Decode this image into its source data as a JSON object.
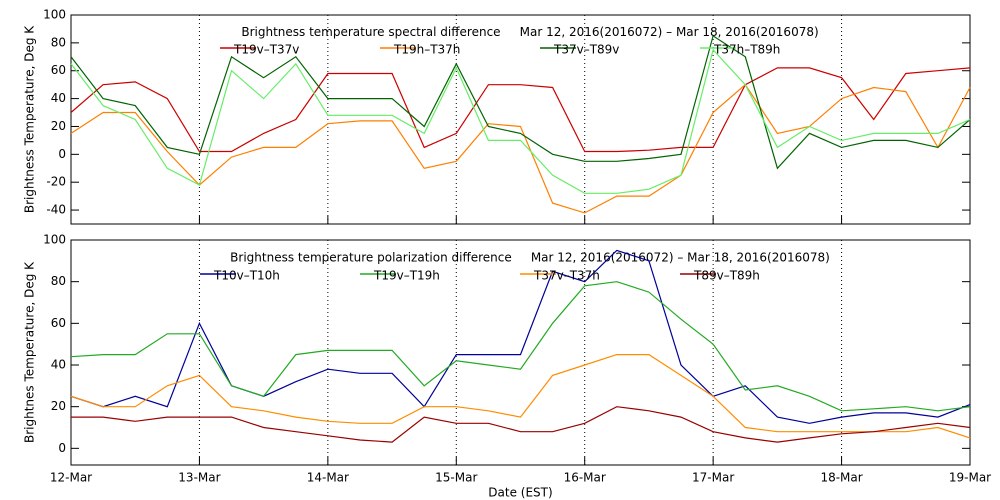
{
  "chart_data": [
    {
      "type": "line",
      "title": "Brightness temperature spectral difference     Mar 12, 2016(2016072) – Mar 18, 2016(2016078)",
      "ylabel": "Brightness Temperature, Deg K",
      "x": [
        0,
        0.25,
        0.5,
        0.75,
        1,
        1.25,
        1.5,
        1.75,
        2,
        2.25,
        2.5,
        2.75,
        3,
        3.25,
        3.5,
        3.75,
        4,
        4.25,
        4.5,
        4.75,
        5,
        5.25,
        5.5,
        5.75,
        6,
        6.25,
        6.5,
        6.75,
        7
      ],
      "xlim": [
        0,
        7
      ],
      "xticks": [
        {
          "value": 0,
          "label": "12-Mar"
        },
        {
          "value": 1,
          "label": "13-Mar"
        },
        {
          "value": 2,
          "label": "14-Mar"
        },
        {
          "value": 3,
          "label": "15-Mar"
        },
        {
          "value": 4,
          "label": "16-Mar"
        },
        {
          "value": 5,
          "label": "17-Mar"
        },
        {
          "value": 6,
          "label": "18-Mar"
        },
        {
          "value": 7,
          "label": "19-Mar"
        }
      ],
      "ylim": [
        -50,
        100
      ],
      "yticks": [
        -40,
        -20,
        0,
        20,
        40,
        60,
        80,
        100
      ],
      "grid": true,
      "series": [
        {
          "name": "T19v–T37v",
          "color": "#cc0000",
          "values": [
            30,
            50,
            52,
            40,
            2,
            2,
            15,
            25,
            58,
            58,
            58,
            5,
            15,
            50,
            50,
            48,
            2,
            2,
            3,
            5,
            5,
            50,
            62,
            62,
            55,
            25,
            58,
            60,
            62
          ]
        },
        {
          "name": "T19h–T37h",
          "color": "#ff7f00",
          "values": [
            15,
            30,
            30,
            2,
            -22,
            -2,
            5,
            5,
            22,
            24,
            24,
            -10,
            -5,
            22,
            20,
            -35,
            -42,
            -30,
            -30,
            -15,
            30,
            50,
            15,
            20,
            40,
            48,
            45,
            5,
            48
          ]
        },
        {
          "name": "T37v–T89v",
          "color": "#006400",
          "values": [
            70,
            40,
            35,
            5,
            0,
            70,
            55,
            70,
            40,
            40,
            40,
            20,
            65,
            20,
            15,
            0,
            -5,
            -5,
            -3,
            0,
            85,
            70,
            -10,
            15,
            5,
            10,
            10,
            5,
            25
          ]
        },
        {
          "name": "T37h–T89h",
          "color": "#66ee66",
          "values": [
            65,
            35,
            25,
            -10,
            -22,
            60,
            40,
            65,
            28,
            28,
            28,
            15,
            62,
            10,
            10,
            -15,
            -28,
            -28,
            -25,
            -15,
            75,
            50,
            5,
            20,
            10,
            15,
            15,
            15,
            25
          ]
        }
      ]
    },
    {
      "type": "line",
      "title": "Brightness temperature polarization difference     Mar 12, 2016(2016072) – Mar 18, 2016(2016078)",
      "ylabel": "Brightnes Temperature, Deg K",
      "xlabel": "Date (EST)",
      "x": [
        0,
        0.25,
        0.5,
        0.75,
        1,
        1.25,
        1.5,
        1.75,
        2,
        2.25,
        2.5,
        2.75,
        3,
        3.25,
        3.5,
        3.75,
        4,
        4.25,
        4.5,
        4.75,
        5,
        5.25,
        5.5,
        5.75,
        6,
        6.25,
        6.5,
        6.75,
        7
      ],
      "xlim": [
        0,
        7
      ],
      "xticks": [
        {
          "value": 0,
          "label": "12-Mar"
        },
        {
          "value": 1,
          "label": "13-Mar"
        },
        {
          "value": 2,
          "label": "14-Mar"
        },
        {
          "value": 3,
          "label": "15-Mar"
        },
        {
          "value": 4,
          "label": "16-Mar"
        },
        {
          "value": 5,
          "label": "17-Mar"
        },
        {
          "value": 6,
          "label": "18-Mar"
        },
        {
          "value": 7,
          "label": "19-Mar"
        }
      ],
      "ylim": [
        -8,
        100
      ],
      "yticks": [
        0,
        20,
        40,
        60,
        80,
        100
      ],
      "grid": true,
      "series": [
        {
          "name": "T10v–T10h",
          "color": "#000099",
          "values": [
            25,
            20,
            25,
            20,
            60,
            30,
            25,
            32,
            38,
            36,
            36,
            20,
            45,
            45,
            45,
            85,
            80,
            95,
            90,
            40,
            25,
            30,
            15,
            12,
            15,
            17,
            17,
            15,
            21
          ]
        },
        {
          "name": "T19v–T19h",
          "color": "#22aa22",
          "values": [
            44,
            45,
            45,
            55,
            55,
            30,
            25,
            45,
            47,
            47,
            47,
            30,
            42,
            40,
            38,
            60,
            78,
            80,
            75,
            62,
            50,
            28,
            30,
            25,
            18,
            19,
            20,
            18,
            20
          ]
        },
        {
          "name": "T37v–T37h",
          "color": "#ff8c00",
          "values": [
            25,
            20,
            20,
            30,
            35,
            20,
            18,
            15,
            13,
            12,
            12,
            20,
            20,
            18,
            15,
            35,
            40,
            45,
            45,
            35,
            25,
            10,
            8,
            8,
            8,
            8,
            8,
            10,
            5
          ]
        },
        {
          "name": "T89v–T89h",
          "color": "#990000",
          "values": [
            15,
            15,
            13,
            15,
            15,
            15,
            10,
            8,
            6,
            4,
            3,
            15,
            12,
            12,
            8,
            8,
            12,
            20,
            18,
            15,
            8,
            5,
            3,
            5,
            7,
            8,
            10,
            12,
            10
          ]
        }
      ]
    }
  ]
}
